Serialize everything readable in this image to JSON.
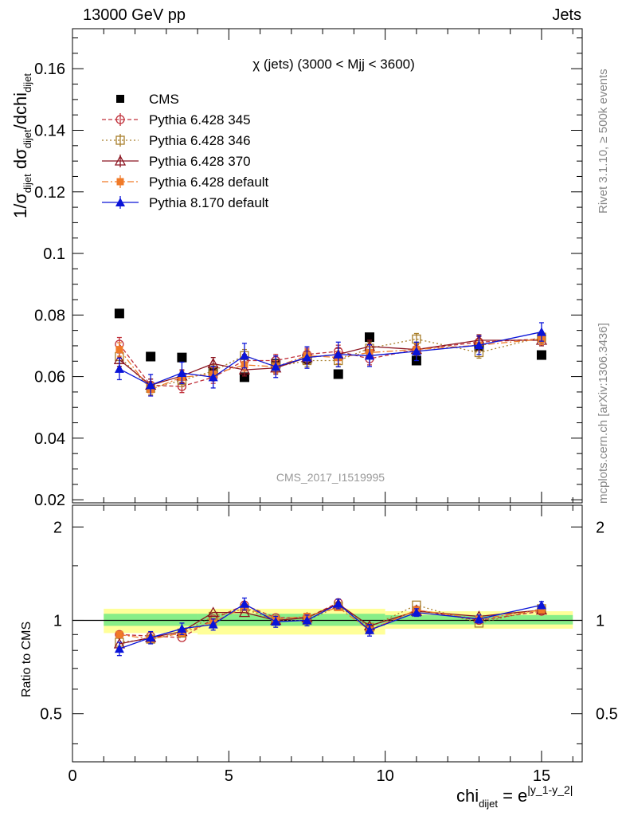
{
  "header": {
    "left": "13000 GeV pp",
    "right": "Jets"
  },
  "side_labels": {
    "rivet": "Rivet 3.1.10, ≥ 500k events",
    "mcplots": "mcplots.cern.ch [arXiv:1306.3436]"
  },
  "chart_data": [
    {
      "panel": "main",
      "type": "scatter",
      "title": "χ (jets) (3000 < Mjj < 3600)",
      "watermark": "CMS_2017_I1519995",
      "ylabel": "1/σ_dijet dσ_dijet/dchi_dijet",
      "xlabel": "chi_dijet = e^|y_1-y_2|",
      "xlim": [
        0,
        16.3
      ],
      "ylim": [
        0.019,
        0.173
      ],
      "xticks": [
        "0",
        "5",
        "10",
        "15"
      ],
      "yticks": [
        "0.02",
        "0.04",
        "0.06",
        "0.08",
        "0.1",
        "0.12",
        "0.14",
        "0.16"
      ],
      "x": [
        1.5,
        2.5,
        3.5,
        4.5,
        5.5,
        6.5,
        7.5,
        8.5,
        9.5,
        11,
        13,
        15
      ],
      "series": [
        {
          "name": "CMS",
          "color": "#000000",
          "marker": "square-filled",
          "values": [
            0.0805,
            0.0665,
            0.0662,
            0.0618,
            0.0598,
            0.0642,
            0.0658,
            0.0608,
            0.0728,
            0.0652,
            0.0698,
            0.067
          ],
          "err": [
            0,
            0,
            0,
            0,
            0,
            0,
            0,
            0,
            0,
            0,
            0,
            0
          ]
        },
        {
          "name": "Pythia 6.428 345",
          "color": "#c0303a",
          "marker": "circle-open",
          "dash": "5,3",
          "values": [
            0.0705,
            0.0572,
            0.0568,
            0.0598,
            0.0652,
            0.0652,
            0.0672,
            0.0682,
            0.0658,
            0.0688,
            0.0712,
            0.0722
          ],
          "err": [
            0.0022,
            0.002,
            0.002,
            0.002,
            0.002,
            0.002,
            0.002,
            0.002,
            0.002,
            0.0018,
            0.0018,
            0.0018
          ]
        },
        {
          "name": "Pythia 6.428 346",
          "color": "#a87e2a",
          "marker": "square-open",
          "dash": "2,3",
          "values": [
            0.0665,
            0.0562,
            0.0588,
            0.0618,
            0.0668,
            0.0632,
            0.0652,
            0.0652,
            0.0692,
            0.0722,
            0.0678,
            0.0728
          ],
          "err": [
            0.0022,
            0.002,
            0.002,
            0.002,
            0.002,
            0.002,
            0.002,
            0.002,
            0.002,
            0.0018,
            0.0018,
            0.0018
          ]
        },
        {
          "name": "Pythia 6.428 370",
          "color": "#8b1420",
          "marker": "triangle-open",
          "dash": "",
          "values": [
            0.0655,
            0.0572,
            0.0602,
            0.0642,
            0.0622,
            0.0628,
            0.0662,
            0.0672,
            0.0698,
            0.0688,
            0.0718,
            0.0718
          ],
          "err": [
            0.0022,
            0.002,
            0.002,
            0.002,
            0.002,
            0.002,
            0.002,
            0.002,
            0.002,
            0.0018,
            0.0018,
            0.0018
          ]
        },
        {
          "name": "Pythia 6.428 default",
          "color": "#f07a28",
          "marker": "square-filled-small",
          "dash": "8,3,2,3",
          "values": [
            0.0688,
            0.0558,
            0.0598,
            0.0608,
            0.0638,
            0.0632,
            0.0668,
            0.0662,
            0.0678,
            0.0688,
            0.0702,
            0.0722
          ],
          "err": [
            0.0022,
            0.002,
            0.002,
            0.002,
            0.002,
            0.002,
            0.002,
            0.002,
            0.002,
            0.0018,
            0.0018,
            0.0018
          ]
        },
        {
          "name": "Pythia 8.170 default",
          "color": "#0a14d8",
          "marker": "triangle-filled",
          "dash": "",
          "values": [
            0.0625,
            0.0572,
            0.0612,
            0.0598,
            0.0668,
            0.0632,
            0.0662,
            0.0672,
            0.0668,
            0.0682,
            0.0702,
            0.0745
          ],
          "err": [
            0.0035,
            0.0035,
            0.0035,
            0.0035,
            0.004,
            0.0035,
            0.0035,
            0.004,
            0.0035,
            0.003,
            0.003,
            0.003
          ]
        }
      ]
    },
    {
      "panel": "ratio",
      "type": "scatter",
      "ylabel": "Ratio to CMS",
      "ylim": [
        0.35,
        2.35
      ],
      "log_y": true,
      "yticks": [
        "0.5",
        "1",
        "2"
      ],
      "reference": 1,
      "bands": {
        "inner_color": "#88ee88",
        "outer_color": "#ffff99",
        "bins": [
          {
            "lo": 1,
            "hi": 4,
            "inner": [
              0.96,
              1.05
            ],
            "outer": [
              0.91,
              1.09
            ]
          },
          {
            "lo": 4,
            "hi": 10,
            "inner": [
              0.96,
              1.05
            ],
            "outer": [
              0.9,
              1.09
            ]
          },
          {
            "lo": 10,
            "hi": 16,
            "inner": [
              0.97,
              1.04
            ],
            "outer": [
              0.94,
              1.07
            ]
          }
        ]
      },
      "x": [
        1.5,
        2.5,
        3.5,
        4.5,
        5.5,
        6.5,
        7.5,
        8.5,
        9.5,
        11,
        13,
        15
      ],
      "series": [
        {
          "name": "Pythia 6.428 345",
          "color": "#c0303a",
          "marker": "circle-open",
          "dash": "5,3",
          "values": [
            0.9,
            0.89,
            0.88,
            1.01,
            1.12,
            1.02,
            1.02,
            1.14,
            0.93,
            1.08,
            1.0,
            1.07
          ]
        },
        {
          "name": "Pythia 6.428 346",
          "color": "#a87e2a",
          "marker": "square-open",
          "dash": "2,3",
          "values": [
            0.85,
            0.87,
            0.91,
            1.03,
            1.09,
            1.0,
            1.0,
            1.11,
            0.95,
            1.12,
            0.98,
            1.09
          ]
        },
        {
          "name": "Pythia 6.428 370",
          "color": "#8b1420",
          "marker": "triangle-open",
          "dash": "",
          "values": [
            0.84,
            0.88,
            0.92,
            1.06,
            1.06,
            1.0,
            1.02,
            1.13,
            0.96,
            1.07,
            1.03,
            1.08
          ]
        },
        {
          "name": "Pythia 6.428 default",
          "color": "#f07a28",
          "marker": "square-filled-small",
          "dash": "8,3,2,3",
          "values": [
            0.9,
            0.87,
            0.91,
            0.99,
            1.1,
            1.01,
            1.03,
            1.1,
            0.93,
            1.08,
            1.01,
            1.08
          ]
        },
        {
          "name": "Pythia 8.170 default",
          "color": "#0a14d8",
          "marker": "triangle-filled",
          "dash": "",
          "values": [
            0.81,
            0.88,
            0.94,
            0.97,
            1.13,
            0.99,
            1.0,
            1.13,
            0.93,
            1.06,
            1.01,
            1.12
          ],
          "err": [
            0.04,
            0.04,
            0.04,
            0.04,
            0.05,
            0.04,
            0.04,
            0.04,
            0.04,
            0.03,
            0.03,
            0.03
          ]
        }
      ]
    }
  ]
}
